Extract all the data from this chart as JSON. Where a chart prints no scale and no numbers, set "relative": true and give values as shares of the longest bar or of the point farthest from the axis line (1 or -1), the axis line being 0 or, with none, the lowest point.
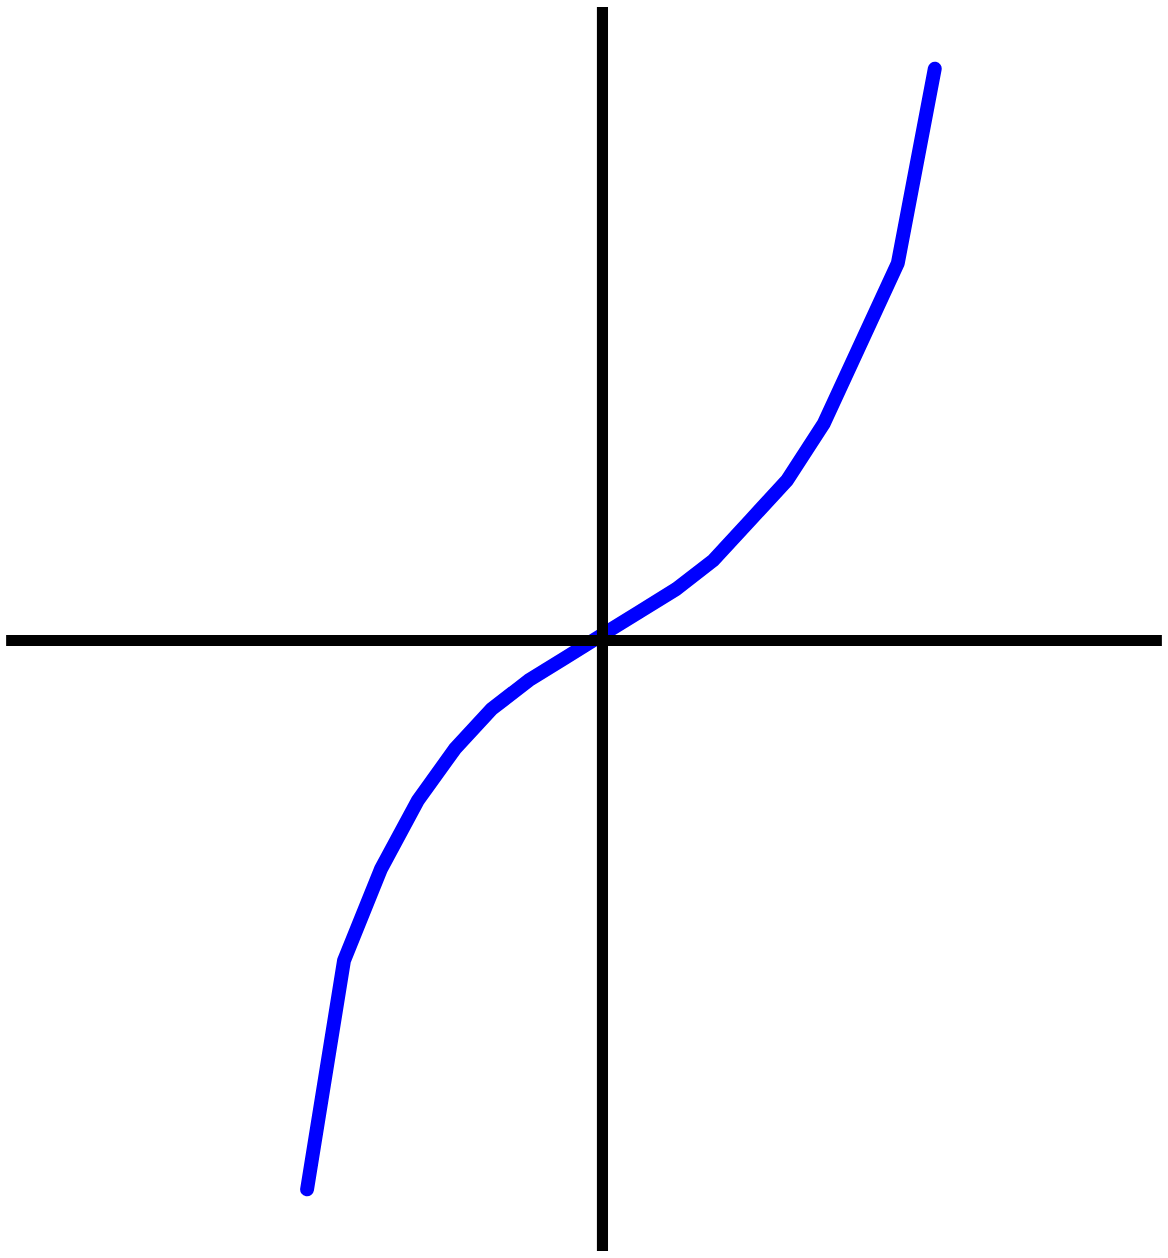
{
  "chart_data": {
    "type": "line",
    "relative": true,
    "categories": [
      null,
      null,
      null,
      null,
      null,
      null,
      null,
      null,
      null,
      null,
      null,
      null,
      null,
      null,
      null,
      null,
      null,
      null
    ],
    "series": [
      {
        "color": "#0000ff",
        "values": [
          -0.96,
          -0.56,
          -0.4,
          -0.28,
          -0.19,
          -0.12,
          -0.07,
          -0.03,
          0.01,
          0.05,
          0.09,
          0.14,
          0.21,
          0.28,
          0.38,
          0.52,
          0.66,
          1.0
        ]
      }
    ],
    "marker": "none"
  }
}
